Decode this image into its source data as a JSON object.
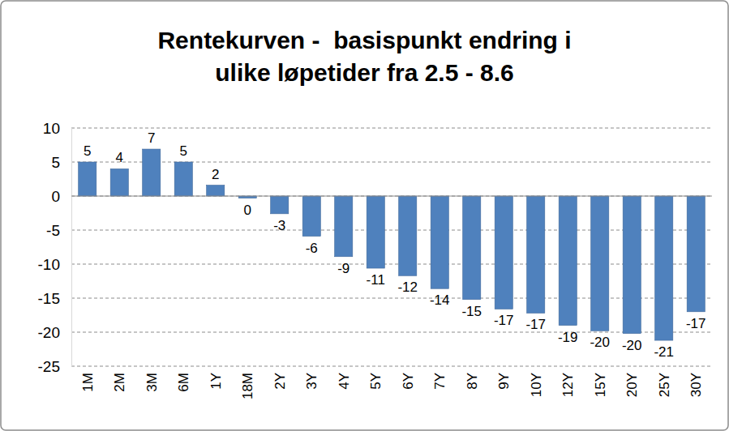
{
  "chart_data": {
    "type": "bar",
    "title": "Rentekurven -  basispunkt endring i ulike løpetider fra 2.5 - 8.6",
    "categories": [
      "1M",
      "2M",
      "3M",
      "6M",
      "1Y",
      "18M",
      "2Y",
      "3Y",
      "4Y",
      "5Y",
      "6Y",
      "7Y",
      "8Y",
      "9Y",
      "10Y",
      "12Y",
      "15Y",
      "20Y",
      "25Y",
      "30Y"
    ],
    "values": [
      5.0,
      4.0,
      6.9,
      5.0,
      1.6,
      -0.3,
      -2.6,
      -5.9,
      -8.9,
      -10.6,
      -11.7,
      -13.6,
      -15.2,
      -16.6,
      -17.2,
      -19.0,
      -19.8,
      -20.2,
      -21.2,
      -17.0
    ],
    "value_labels": [
      "5",
      "4",
      "7",
      "5",
      "2",
      "0",
      "-3",
      "-6",
      "-9",
      "-11",
      "-12",
      "-14",
      "-15",
      "-17",
      "-17",
      "-19",
      "-20",
      "-20",
      "-21",
      "-17"
    ],
    "color": "#4f81bd",
    "ylim": [
      -25,
      10
    ],
    "yticks": [
      -25,
      -20,
      -15,
      -10,
      -5,
      0,
      5,
      10
    ],
    "grid": true,
    "data_labels": true
  }
}
